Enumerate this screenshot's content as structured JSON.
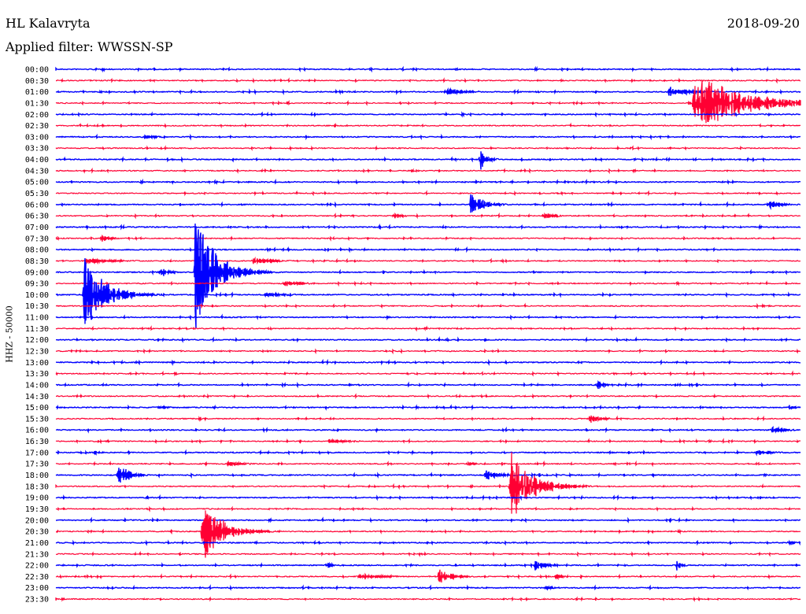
{
  "header": {
    "station": "HL Kalavryta",
    "date": "2018-09-20",
    "filter": "Applied filter: WWSSN-SP"
  },
  "chart_data": {
    "type": "line",
    "title": "HL Kalavryta 2018-09-20",
    "subtitle": "Applied filter: WWSSN-SP",
    "ylabel": "HHZ - 50000",
    "minutes_per_line": 30,
    "colors": [
      "#0000ff",
      "#ff0033"
    ],
    "rows": [
      "00:00",
      "00:30",
      "01:00",
      "01:30",
      "02:00",
      "02:30",
      "03:00",
      "03:30",
      "04:00",
      "04:30",
      "05:00",
      "05:30",
      "06:00",
      "06:30",
      "07:00",
      "07:30",
      "08:00",
      "08:30",
      "09:00",
      "09:30",
      "10:00",
      "10:30",
      "11:00",
      "11:30",
      "12:00",
      "12:30",
      "13:00",
      "13:30",
      "14:00",
      "14:30",
      "15:00",
      "15:30",
      "16:00",
      "16:30",
      "17:00",
      "17:30",
      "18:00",
      "18:30",
      "19:00",
      "19:30",
      "20:00",
      "20:30",
      "21:00",
      "21:30",
      "22:00",
      "22:30",
      "23:00",
      "23:30"
    ],
    "events": [
      {
        "row": 2,
        "minute": 15.7,
        "amp": 5,
        "dur": 1.3
      },
      {
        "row": 2,
        "minute": 24.7,
        "amp": 8,
        "dur": 1.2
      },
      {
        "row": 3,
        "minute": 25.7,
        "amp": 40,
        "dur": 3
      },
      {
        "row": 6,
        "minute": 3.5,
        "amp": 3,
        "dur": 1
      },
      {
        "row": 8,
        "minute": 17.1,
        "amp": 15,
        "dur": 0.4
      },
      {
        "row": 12,
        "minute": 16.7,
        "amp": 15,
        "dur": 0.8
      },
      {
        "row": 12,
        "minute": 28.7,
        "amp": 6,
        "dur": 0.8
      },
      {
        "row": 13,
        "minute": 13.6,
        "amp": 5,
        "dur": 0.5
      },
      {
        "row": 13,
        "minute": 19.6,
        "amp": 4,
        "dur": 0.8
      },
      {
        "row": 15,
        "minute": 1.8,
        "amp": 6,
        "dur": 0.6
      },
      {
        "row": 17,
        "minute": 1.2,
        "amp": 4,
        "dur": 2
      },
      {
        "row": 17,
        "minute": 7.9,
        "amp": 4,
        "dur": 1.5
      },
      {
        "row": 18,
        "minute": 5.6,
        "amp": 80,
        "dur": 1.2
      },
      {
        "row": 18,
        "minute": 4.2,
        "amp": 8,
        "dur": 0.5
      },
      {
        "row": 19,
        "minute": 9.2,
        "amp": 5,
        "dur": 1
      },
      {
        "row": 20,
        "minute": 1.1,
        "amp": 55,
        "dur": 1.2
      },
      {
        "row": 20,
        "minute": 8.4,
        "amp": 3,
        "dur": 1.5
      },
      {
        "row": 28,
        "minute": 21.8,
        "amp": 8,
        "dur": 0.4
      },
      {
        "row": 30,
        "minute": 4.1,
        "amp": 3,
        "dur": 0.6
      },
      {
        "row": 30,
        "minute": 29.5,
        "amp": 4,
        "dur": 0.4
      },
      {
        "row": 31,
        "minute": 21.5,
        "amp": 7,
        "dur": 0.7
      },
      {
        "row": 32,
        "minute": 28.8,
        "amp": 4,
        "dur": 1
      },
      {
        "row": 33,
        "minute": 11,
        "amp": 3,
        "dur": 1.5
      },
      {
        "row": 34,
        "minute": 1.5,
        "amp": 4,
        "dur": 0.4
      },
      {
        "row": 34,
        "minute": 28.2,
        "amp": 4,
        "dur": 1
      },
      {
        "row": 35,
        "minute": 6.9,
        "amp": 3,
        "dur": 1.2
      },
      {
        "row": 35,
        "minute": 16.6,
        "amp": 5,
        "dur": 0.4
      },
      {
        "row": 36,
        "minute": 2.5,
        "amp": 20,
        "dur": 0.6
      },
      {
        "row": 36,
        "minute": 17.3,
        "amp": 8,
        "dur": 0.8
      },
      {
        "row": 37,
        "minute": 18.3,
        "amp": 50,
        "dur": 1.3
      },
      {
        "row": 41,
        "minute": 5.9,
        "amp": 45,
        "dur": 1.2
      },
      {
        "row": 42,
        "minute": 29.5,
        "amp": 4,
        "dur": 0.4
      },
      {
        "row": 44,
        "minute": 10.9,
        "amp": 5,
        "dur": 0.4
      },
      {
        "row": 44,
        "minute": 19.3,
        "amp": 7,
        "dur": 0.6
      },
      {
        "row": 44,
        "minute": 25,
        "amp": 8,
        "dur": 0.3
      },
      {
        "row": 45,
        "minute": 12.2,
        "amp": 5,
        "dur": 1.5
      },
      {
        "row": 45,
        "minute": 15.4,
        "amp": 10,
        "dur": 0.9
      },
      {
        "row": 45,
        "minute": 20.1,
        "amp": 5,
        "dur": 0.4
      },
      {
        "row": 46,
        "minute": 19.7,
        "amp": 2,
        "dur": 1
      }
    ]
  }
}
